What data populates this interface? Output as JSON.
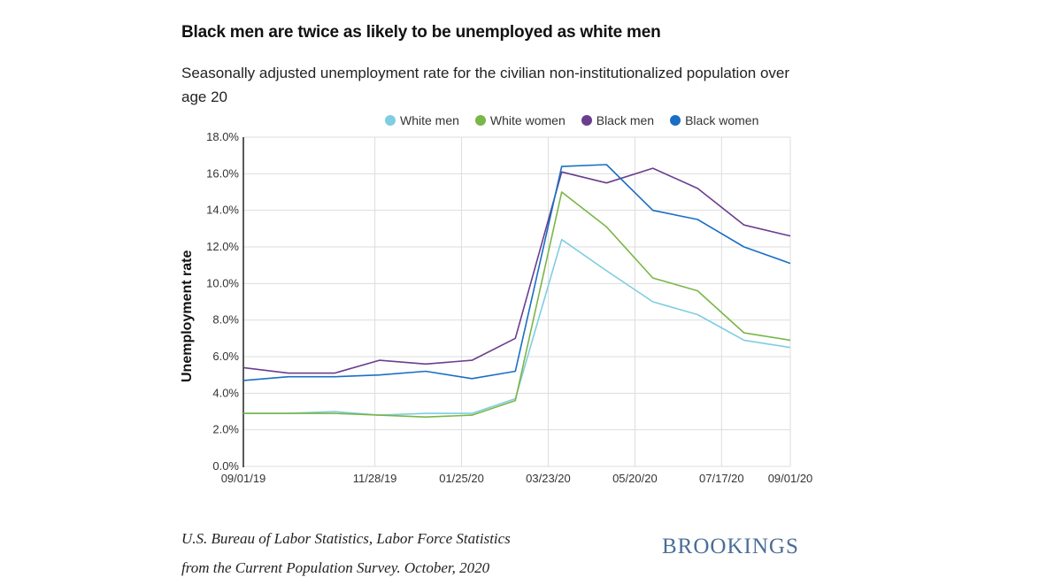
{
  "title": "Black men are twice as likely to be unemployed as white men",
  "subtitle": "Seasonally adjusted unemployment rate for the civilian non-institutionalized population over age 20",
  "source_line1": "U.S. Bureau of Labor Statistics, Labor Force Statistics",
  "source_line2": "from the Current Population Survey. October, 2020",
  "logo": "BROOKINGS",
  "chart_data": {
    "type": "line",
    "ylabel": "Unemployment rate",
    "ylim": [
      0,
      18
    ],
    "yticks": [
      "0.0%",
      "2.0%",
      "4.0%",
      "6.0%",
      "8.0%",
      "10.0%",
      "12.0%",
      "14.0%",
      "16.0%",
      "18.0%"
    ],
    "x": [
      "2019-09-01",
      "2019-10-01",
      "2019-11-01",
      "2019-12-01",
      "2020-01-01",
      "2020-02-01",
      "2020-03-01",
      "2020-04-01",
      "2020-05-01",
      "2020-06-01",
      "2020-07-01",
      "2020-08-01",
      "2020-09-01"
    ],
    "xlim": [
      "2019-09-01",
      "2020-09-01"
    ],
    "xticks": [
      {
        "date": "2019-09-01",
        "label": "09/01/19"
      },
      {
        "date": "2019-11-28",
        "label": "11/28/19"
      },
      {
        "date": "2020-01-25",
        "label": "01/25/20"
      },
      {
        "date": "2020-03-23",
        "label": "03/23/20"
      },
      {
        "date": "2020-05-20",
        "label": "05/20/20"
      },
      {
        "date": "2020-07-17",
        "label": "07/17/20"
      },
      {
        "date": "2020-09-01",
        "label": "09/01/20"
      }
    ],
    "legend_position": "top",
    "grid": true,
    "series": [
      {
        "name": "White men",
        "color": "#7fcde0",
        "values": [
          2.9,
          2.9,
          3.0,
          2.8,
          2.9,
          2.9,
          3.7,
          12.4,
          10.7,
          9.0,
          8.3,
          6.9,
          6.5
        ]
      },
      {
        "name": "White women",
        "color": "#7ab648",
        "values": [
          2.9,
          2.9,
          2.9,
          2.8,
          2.7,
          2.8,
          3.6,
          15.0,
          13.1,
          10.3,
          9.6,
          7.3,
          6.9
        ]
      },
      {
        "name": "Black men",
        "color": "#6b3d8f",
        "values": [
          5.4,
          5.1,
          5.1,
          5.8,
          5.6,
          5.8,
          7.0,
          16.1,
          15.5,
          16.3,
          15.2,
          13.2,
          12.6
        ]
      },
      {
        "name": "Black women",
        "color": "#1a6fc4",
        "values": [
          4.7,
          4.9,
          4.9,
          5.0,
          5.2,
          4.8,
          5.2,
          16.4,
          16.5,
          14.0,
          13.5,
          12.0,
          11.1
        ]
      }
    ]
  }
}
